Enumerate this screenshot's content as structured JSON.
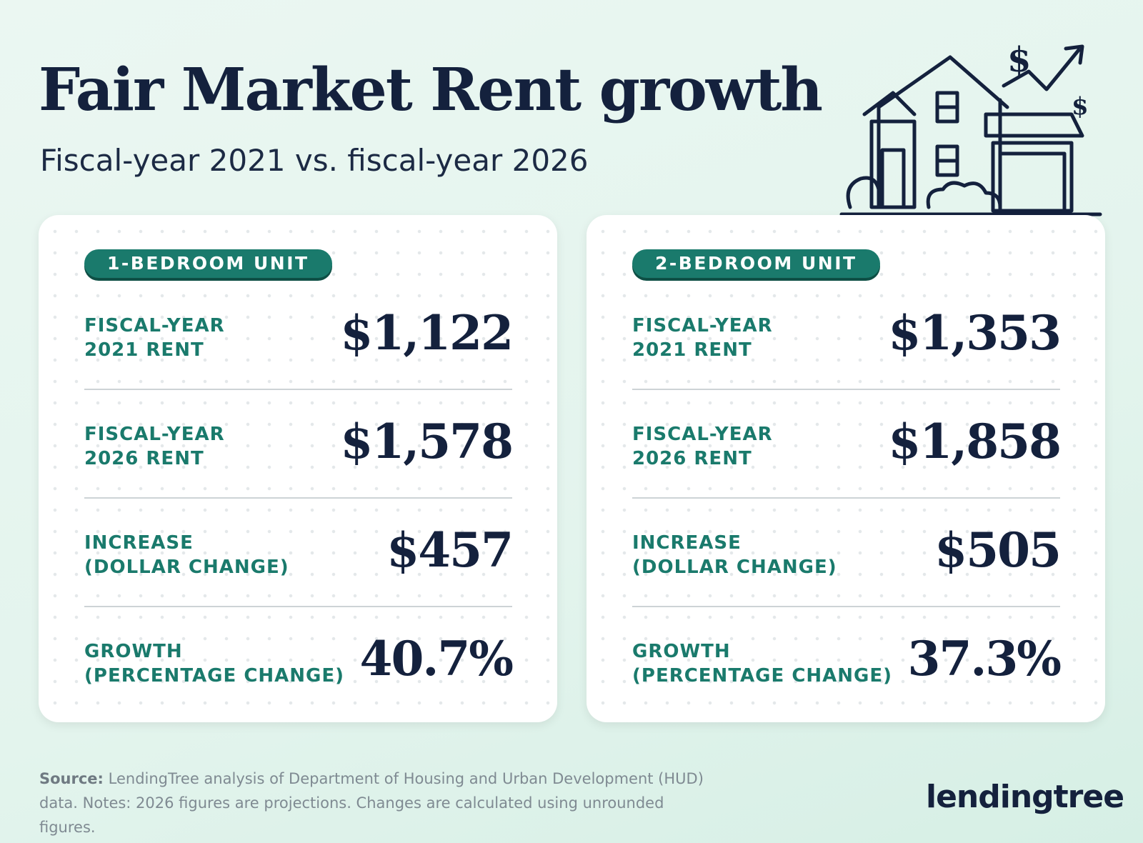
{
  "header": {
    "title": "Fair Market Rent growth",
    "subtitle": "Fiscal-year 2021 vs. fiscal-year 2026"
  },
  "cards": [
    {
      "badge": "1-BEDROOM UNIT",
      "rows": [
        {
          "label": [
            "FISCAL-YEAR",
            "2021 RENT"
          ],
          "value": "$1,122"
        },
        {
          "label": [
            "FISCAL-YEAR",
            "2026 RENT"
          ],
          "value": "$1,578"
        },
        {
          "label": [
            "INCREASE",
            "(DOLLAR CHANGE)"
          ],
          "value": "$457"
        },
        {
          "label": [
            "GROWTH",
            "(PERCENTAGE CHANGE)"
          ],
          "value": "40.7%"
        }
      ]
    },
    {
      "badge": "2-BEDROOM UNIT",
      "rows": [
        {
          "label": [
            "FISCAL-YEAR",
            "2021 RENT"
          ],
          "value": "$1,353"
        },
        {
          "label": [
            "FISCAL-YEAR",
            "2026 RENT"
          ],
          "value": "$1,858"
        },
        {
          "label": [
            "INCREASE",
            "(DOLLAR CHANGE)"
          ],
          "value": "$505"
        },
        {
          "label": [
            "GROWTH",
            "(PERCENTAGE CHANGE)"
          ],
          "value": "37.3%"
        }
      ]
    }
  ],
  "source": {
    "label": "Source:",
    "text": "LendingTree analysis of Department of Housing and Urban Development (HUD) data. Notes: 2026 figures are projections. Changes are calculated using unrounded figures."
  },
  "logo": "lendingtree"
}
